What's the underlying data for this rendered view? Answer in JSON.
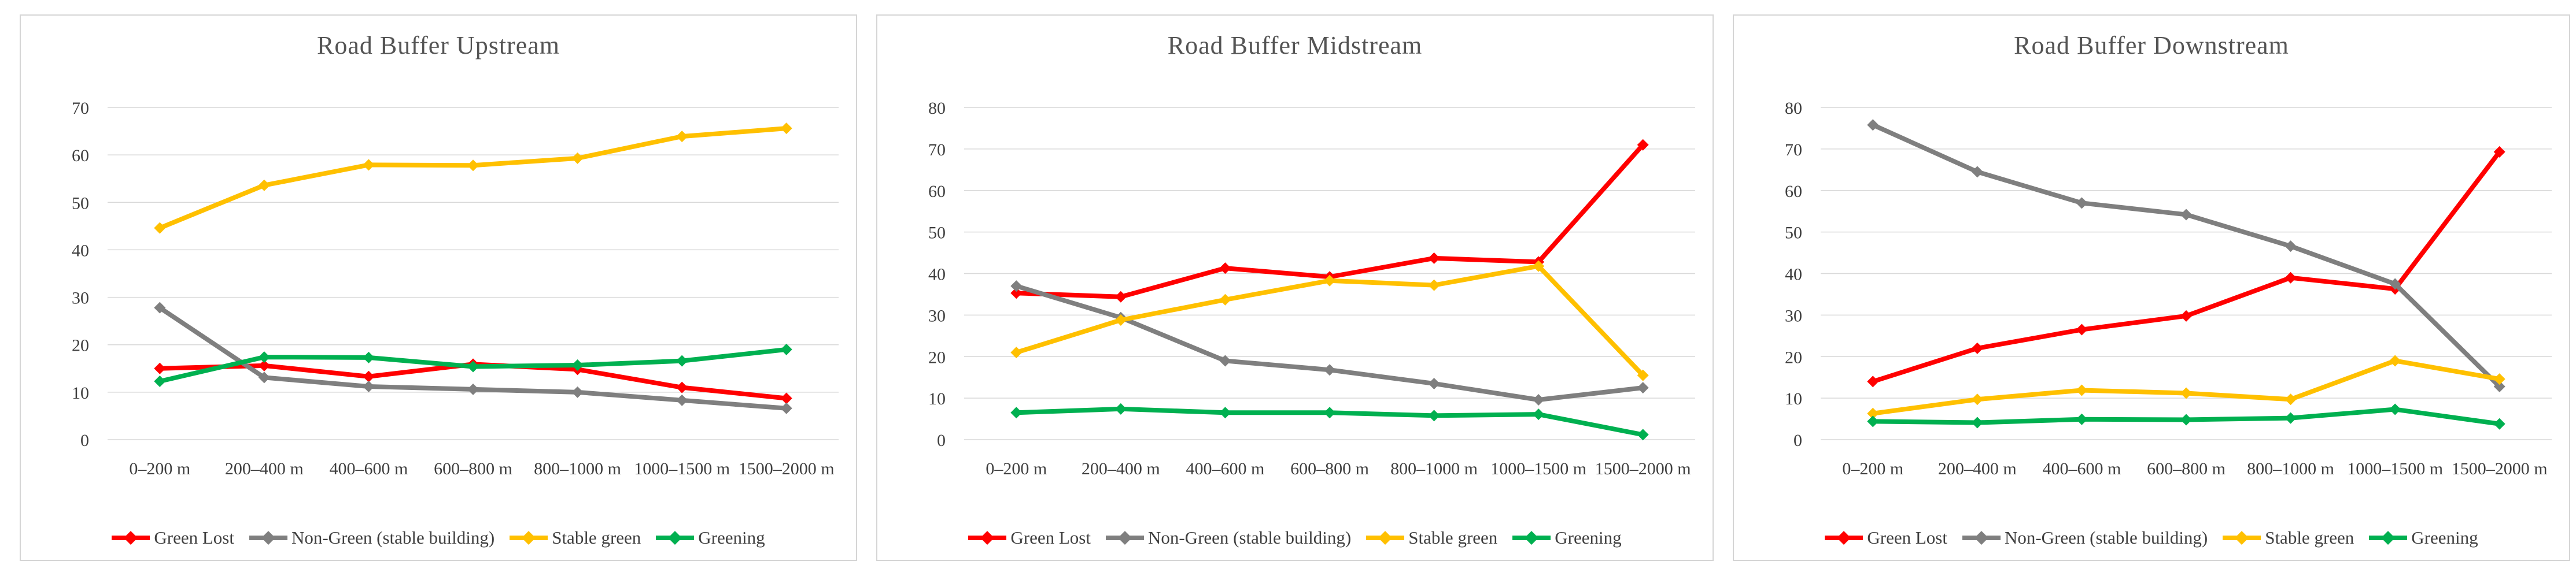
{
  "figure": {
    "background": "#ffffff",
    "panel_border_color": "#d5d5d5",
    "grid_color": "#d9d9d9",
    "axis_text_color": "#3f3f3f",
    "title_text_color": "#545454"
  },
  "chart_data": [
    {
      "type": "line",
      "title": "Road Buffer Upstream",
      "xlabel": "",
      "ylabel": "",
      "ylim": [
        0,
        70
      ],
      "ytick_step": 10,
      "grid": "horizontal",
      "legend_position": "bottom",
      "categories": [
        "0–200 m",
        "200–400 m",
        "400–600 m",
        "600–800 m",
        "800–1000 m",
        "1000–1500 m",
        "1500–2000 m"
      ],
      "series": [
        {
          "name": "Green Lost",
          "color": "#ff0000",
          "marker": "diamond",
          "values": [
            15.0,
            15.6,
            13.3,
            15.9,
            14.8,
            11.0,
            8.7
          ]
        },
        {
          "name": "Non-Green (stable building)",
          "color": "#7f7f7f",
          "marker": "diamond",
          "values": [
            27.8,
            13.1,
            11.2,
            10.6,
            10.0,
            8.3,
            6.6
          ]
        },
        {
          "name": "Stable green",
          "color": "#ffc000",
          "marker": "diamond",
          "values": [
            44.6,
            53.6,
            57.9,
            57.8,
            59.3,
            63.9,
            65.6
          ]
        },
        {
          "name": "Greening",
          "color": "#00b050",
          "marker": "diamond",
          "values": [
            12.3,
            17.4,
            17.3,
            15.4,
            15.7,
            16.6,
            19.0
          ]
        }
      ]
    },
    {
      "type": "line",
      "title": "Road Buffer Midstream",
      "xlabel": "",
      "ylabel": "",
      "ylim": [
        0,
        80
      ],
      "ytick_step": 10,
      "grid": "horizontal",
      "legend_position": "bottom",
      "categories": [
        "0–200 m",
        "200–400 m",
        "400–600 m",
        "600–800 m",
        "800–1000 m",
        "1000–1500 m",
        "1500–2000 m"
      ],
      "series": [
        {
          "name": "Green Lost",
          "color": "#ff0000",
          "marker": "diamond",
          "values": [
            35.3,
            34.4,
            41.3,
            39.2,
            43.7,
            42.8,
            71.0
          ]
        },
        {
          "name": "Non-Green (stable building)",
          "color": "#7f7f7f",
          "marker": "diamond",
          "values": [
            37.0,
            29.4,
            19.0,
            16.8,
            13.5,
            9.6,
            12.5
          ]
        },
        {
          "name": "Stable green",
          "color": "#ffc000",
          "marker": "diamond",
          "values": [
            21.0,
            28.8,
            33.7,
            38.3,
            37.2,
            41.8,
            15.5
          ]
        },
        {
          "name": "Greening",
          "color": "#00b050",
          "marker": "diamond",
          "values": [
            6.5,
            7.4,
            6.5,
            6.5,
            5.8,
            6.1,
            1.2
          ]
        }
      ]
    },
    {
      "type": "line",
      "title": "Road Buffer Downstream",
      "xlabel": "",
      "ylabel": "",
      "ylim": [
        0,
        80
      ],
      "ytick_step": 10,
      "grid": "horizontal",
      "legend_position": "bottom",
      "categories": [
        "0–200 m",
        "200–400 m",
        "400–600 m",
        "600–800 m",
        "800–1000 m",
        "1000–1500 m",
        "1500–2000 m"
      ],
      "series": [
        {
          "name": "Green Lost",
          "color": "#ff0000",
          "marker": "diamond",
          "values": [
            14.0,
            22.0,
            26.5,
            29.8,
            39.0,
            36.3,
            69.3
          ]
        },
        {
          "name": "Non-Green (stable building)",
          "color": "#7f7f7f",
          "marker": "diamond",
          "values": [
            75.8,
            64.5,
            57.0,
            54.2,
            46.6,
            37.5,
            12.8
          ]
        },
        {
          "name": "Stable green",
          "color": "#ffc000",
          "marker": "diamond",
          "values": [
            6.3,
            9.7,
            11.9,
            11.2,
            9.7,
            19.0,
            14.6
          ]
        },
        {
          "name": "Greening",
          "color": "#00b050",
          "marker": "diamond",
          "values": [
            4.4,
            4.1,
            4.9,
            4.8,
            5.2,
            7.3,
            3.8
          ]
        }
      ]
    }
  ]
}
